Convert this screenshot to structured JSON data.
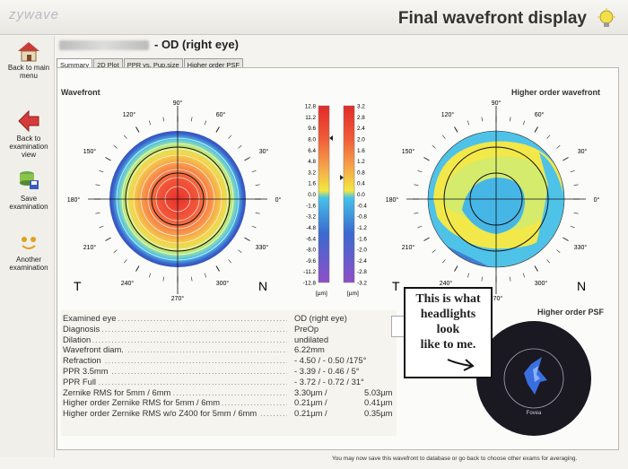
{
  "app": {
    "logo": "zywave",
    "title": "Final wavefront display"
  },
  "sidebar": {
    "back_main": "Back to main menu",
    "back_exam": "Back to examination view",
    "save_exam": "Save examination",
    "another_exam": "Another examination"
  },
  "patient": {
    "eye_label": "- OD (right eye)"
  },
  "tabs": [
    "Summary",
    "2D Plot",
    "PPR vs. Pup.size",
    "Higher order PSF"
  ],
  "wavefront": {
    "title": "Wavefront",
    "angles": [
      "90°",
      "60°",
      "30°",
      "0°",
      "330°",
      "300°",
      "270°",
      "240°",
      "210°",
      "180°",
      "150°",
      "120°"
    ],
    "temporal": "T",
    "nasal": "N"
  },
  "higher_order": {
    "title": "Higher order wavefront"
  },
  "colorbar_left": {
    "ticks": [
      "12.8",
      "11.2",
      "9.6",
      "8.0",
      "6.4",
      "4.8",
      "3.2",
      "1.6",
      "0.0",
      "-1.6",
      "-3.2",
      "-4.8",
      "-6.4",
      "-8.0",
      "-9.6",
      "-11.2",
      "-12.8"
    ],
    "unit": "[µm]"
  },
  "colorbar_right": {
    "ticks": [
      "3.2",
      "2.8",
      "2.4",
      "2.0",
      "1.6",
      "1.2",
      "0.8",
      "0.4",
      "0.0",
      "-0.4",
      "-0.8",
      "-1.2",
      "-1.6",
      "-2.0",
      "-2.4",
      "-2.8",
      "-3.2"
    ],
    "unit": "[µm]"
  },
  "info": [
    {
      "label": "Examined eye",
      "value": "OD  (right  eye)",
      "value2": ""
    },
    {
      "label": "Diagnosis",
      "value": "PreOp",
      "value2": ""
    },
    {
      "label": "Dilation",
      "value": "undilated",
      "value2": ""
    },
    {
      "label": "Wavefront diam.",
      "value": "6.22mm",
      "value2": ""
    },
    {
      "label": "Refraction",
      "value": "- 4.50  /  - 0.50  /175°",
      "value2": ""
    },
    {
      "label": "PPR 3.5mm",
      "value": "- 3.39  /  - 0.46  /    5°",
      "value2": ""
    },
    {
      "label": "PPR Full",
      "value": "- 3.72  /  - 0.72  /  31°",
      "value2": ""
    },
    {
      "label": "Zernike RMS for 5mm / 6mm",
      "value": "3.30µm    /",
      "value2": "5.03µm"
    },
    {
      "label": "Higher order Zernike RMS for 5mm / 6mm",
      "value": "0.21µm    /",
      "value2": "0.41µm"
    },
    {
      "label": "Higher order Zernike RMS w/o Z400 for 5mm / 6mm",
      "value": "0.21µm    /",
      "value2": "0.35µm"
    }
  ],
  "psf": {
    "title": "Higher order PSF",
    "caption": "Fovea"
  },
  "note": [
    "This is what",
    "headlights",
    "look",
    "like to me."
  ],
  "status": "You may now save this wavefront to database or go back to choose other exams for averaging.",
  "colors": {
    "red": "#e8222a",
    "yellow": "#f6ef3c",
    "cyan": "#2fb7e6",
    "blue": "#3552c8",
    "purple": "#9a4fc9"
  }
}
